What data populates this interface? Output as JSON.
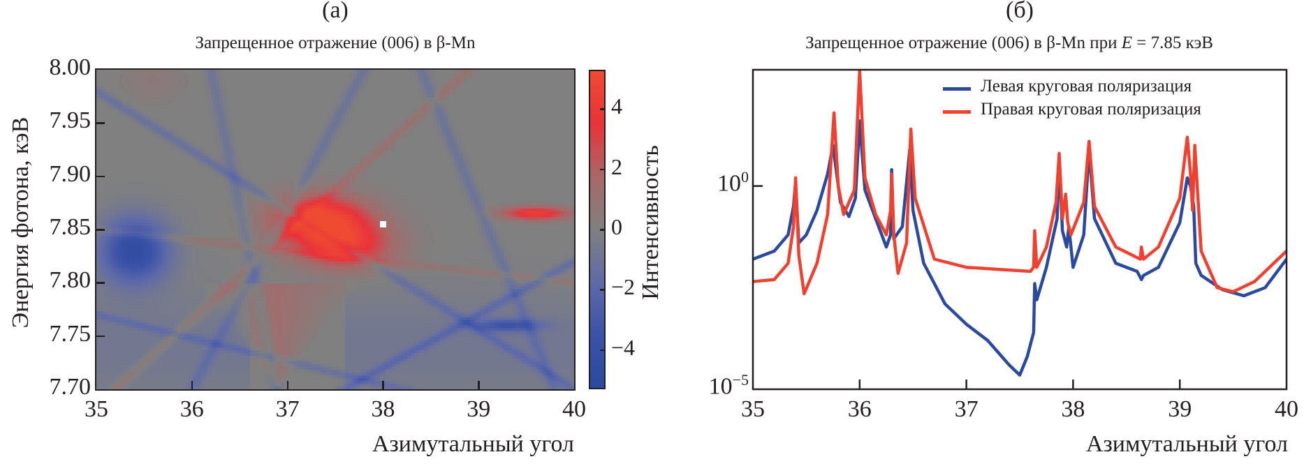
{
  "panels": {
    "a": {
      "label": "(a)",
      "title": "Запрещенное отражение (006) в β-Mn"
    },
    "b": {
      "label": "(б)",
      "title_prefix": "Запрещенное отражение (006) в β-Mn при ",
      "title_var": "E",
      "title_suffix": " = 7.85 кэВ"
    }
  },
  "chart_data": [
    {
      "type": "heatmap",
      "title": "Запрещенное отражение (006) в β-Mn",
      "xlabel": "Азимутальный угол",
      "ylabel": "Энергия фотона, кэВ",
      "xlim": [
        35,
        40
      ],
      "ylim": [
        7.7,
        8.0
      ],
      "x_ticks": [
        "35",
        "36",
        "37",
        "38",
        "39",
        "40"
      ],
      "x_tick_values": [
        35,
        36,
        37,
        38,
        39,
        40
      ],
      "y_ticks": [
        "8.00",
        "7.95",
        "7.90",
        "7.85",
        "7.80",
        "7.75",
        "7.70"
      ],
      "y_tick_values": [
        8.0,
        7.95,
        7.9,
        7.85,
        7.8,
        7.75,
        7.7
      ],
      "colorbar": {
        "range": [
          -5.3,
          5.3
        ],
        "ticks": [
          "4",
          "2",
          "0",
          "−2",
          "−4"
        ],
        "tick_values": [
          4,
          2,
          0,
          -2,
          -4
        ],
        "colormap": [
          "#2a4a9e",
          "#3a52a8",
          "#5f6aa8",
          "#808080",
          "#a86868",
          "#e8333a",
          "#ef4a32"
        ]
      },
      "features": [
        {
          "kind": "max_region",
          "x": 37.35,
          "y": 7.86,
          "value": 5.0
        },
        {
          "kind": "secondary_max",
          "x": 37.6,
          "y": 7.835,
          "value": 4.0
        },
        {
          "kind": "min_region",
          "x": 35.4,
          "y": 7.83,
          "value": -4.5
        },
        {
          "kind": "wedge_positive",
          "apex_x": 36.9,
          "apex_y": 7.7,
          "value": 1.5
        },
        {
          "kind": "strip_positive",
          "x": 39.6,
          "y": 7.865,
          "value": 4.5
        },
        {
          "kind": "strip_negative",
          "x": 39.3,
          "y": 7.76,
          "value": -3.0
        }
      ],
      "marker": {
        "x": 38.0,
        "y": 7.855,
        "color": "#ffffff"
      }
    },
    {
      "type": "line",
      "title": "Запрещенное отражение (006) в β-Mn при E = 7.85 кэВ",
      "xlabel": "Азимутальный угол",
      "ylabel": "Интенсивность",
      "yscale": "log",
      "xlim": [
        35,
        40
      ],
      "ylim_log10": [
        -5,
        2.86
      ],
      "x_ticks": [
        "35",
        "36",
        "37",
        "38",
        "39",
        "40"
      ],
      "x_tick_values": [
        35,
        36,
        37,
        38,
        39,
        40
      ],
      "y_ticks": [
        {
          "base": "10",
          "exp": "0"
        },
        {
          "base": "10",
          "exp": "−5"
        }
      ],
      "y_tick_values_log10": [
        0,
        -5
      ],
      "legend": {
        "position": "top-right"
      },
      "series": [
        {
          "name": "Левая круговая поляризация",
          "color": "#2b4a9e",
          "x": [
            35.0,
            35.2,
            35.33,
            35.38,
            35.4,
            35.43,
            35.5,
            35.6,
            35.7,
            35.75,
            35.78,
            35.82,
            35.9,
            35.96,
            36.0,
            36.05,
            36.15,
            36.25,
            36.29,
            36.3,
            36.32,
            36.4,
            36.47,
            36.5,
            36.6,
            36.8,
            37.0,
            37.2,
            37.4,
            37.5,
            37.57,
            37.63,
            37.64,
            37.66,
            37.75,
            37.85,
            37.87,
            37.9,
            37.94,
            37.96,
            38.0,
            38.1,
            38.15,
            38.2,
            38.4,
            38.6,
            38.64,
            38.66,
            38.8,
            39.0,
            39.07,
            39.1,
            39.13,
            39.15,
            39.2,
            39.4,
            39.6,
            39.8,
            40.0
          ],
          "log10_y": [
            -1.8,
            -1.6,
            -1.2,
            -0.5,
            0.1,
            -1.4,
            -1.2,
            -0.6,
            0.3,
            1.0,
            0.4,
            -0.4,
            -0.75,
            -0.3,
            1.6,
            -0.1,
            -0.8,
            -1.5,
            -1.2,
            0.4,
            -1.3,
            -1.0,
            0.9,
            -0.6,
            -1.9,
            -2.9,
            -3.4,
            -3.8,
            -4.4,
            -4.65,
            -4.2,
            -3.6,
            -2.4,
            -2.8,
            -2.0,
            -0.8,
            0.7,
            -1.1,
            -1.5,
            -1.0,
            -2.0,
            -1.2,
            0.9,
            -0.8,
            -1.9,
            -2.1,
            -2.3,
            -2.2,
            -2.0,
            -0.9,
            0.2,
            0.0,
            -0.5,
            -1.9,
            -2.2,
            -2.55,
            -2.7,
            -2.5,
            -1.8
          ]
        },
        {
          "name": "Правая круговая поляризация",
          "color": "#ef4130",
          "x": [
            35.0,
            35.2,
            35.33,
            35.38,
            35.4,
            35.43,
            35.48,
            35.6,
            35.7,
            35.76,
            35.8,
            35.85,
            35.95,
            36.0,
            36.05,
            36.15,
            36.25,
            36.29,
            36.3,
            36.32,
            36.36,
            36.44,
            36.48,
            36.52,
            36.7,
            37.0,
            37.3,
            37.6,
            37.63,
            37.64,
            37.66,
            37.75,
            37.84,
            37.87,
            37.9,
            37.93,
            37.95,
            37.98,
            38.1,
            38.15,
            38.2,
            38.4,
            38.63,
            38.64,
            38.66,
            38.8,
            39.0,
            39.07,
            39.1,
            39.12,
            39.14,
            39.2,
            39.35,
            39.5,
            39.7,
            40.0
          ],
          "log10_y": [
            -2.35,
            -2.3,
            -1.9,
            -1.0,
            0.2,
            -1.7,
            -2.65,
            -1.9,
            -0.7,
            1.8,
            0.0,
            -0.7,
            -0.1,
            2.85,
            0.2,
            -0.7,
            -1.2,
            -0.6,
            0.3,
            -1.2,
            -2.15,
            -1.4,
            1.4,
            -0.3,
            -1.8,
            -2.0,
            -2.05,
            -2.1,
            -2.0,
            -1.1,
            -2.0,
            -1.5,
            -0.4,
            0.8,
            -0.8,
            -0.2,
            -0.9,
            -1.2,
            -0.4,
            1.1,
            -0.5,
            -1.5,
            -1.8,
            -1.5,
            -1.8,
            -1.5,
            -0.3,
            1.2,
            0.3,
            -0.6,
            1.0,
            -1.6,
            -2.5,
            -2.6,
            -2.35,
            -1.6
          ]
        }
      ]
    }
  ]
}
